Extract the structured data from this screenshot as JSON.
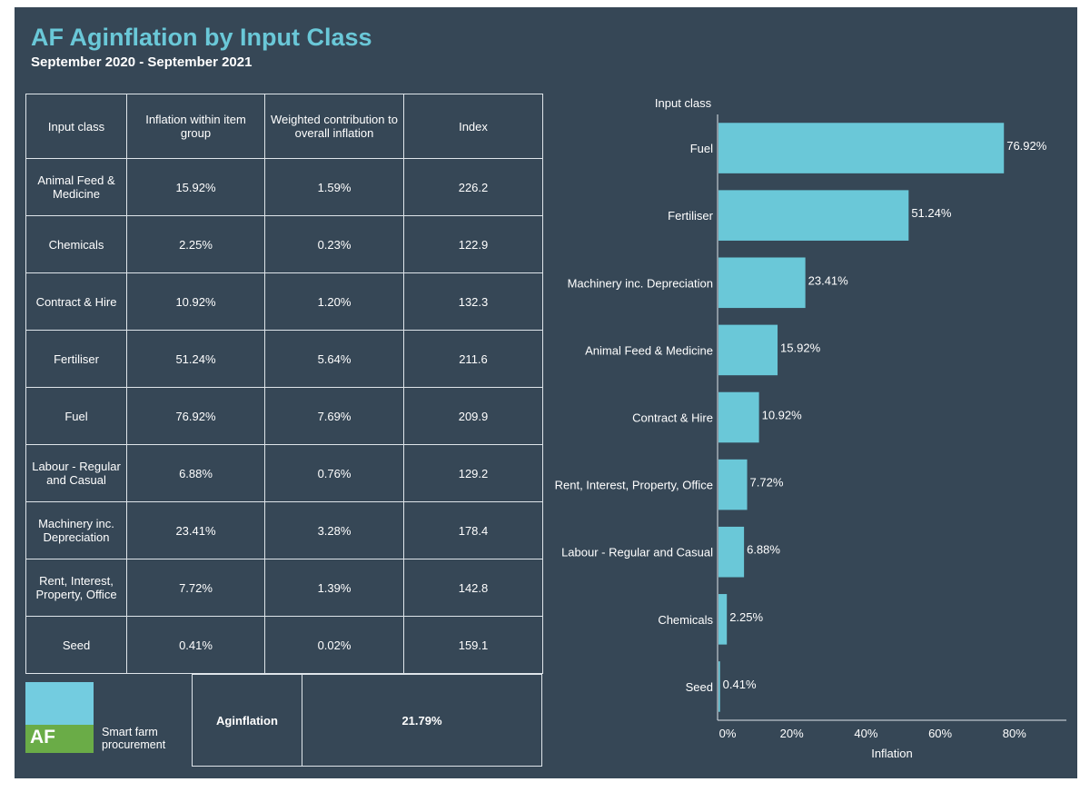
{
  "header": {
    "title": "AF Aginflation by Input Class",
    "subtitle": "September 2020 - September 2021"
  },
  "table": {
    "columns": [
      "Input class",
      "Inflation within item group",
      "Weighted contribution to overall inflation",
      "Index"
    ],
    "rows": [
      [
        "Animal Feed & Medicine",
        "15.92%",
        "1.59%",
        "226.2"
      ],
      [
        "Chemicals",
        "2.25%",
        "0.23%",
        "122.9"
      ],
      [
        "Contract & Hire",
        "10.92%",
        "1.20%",
        "132.3"
      ],
      [
        "Fertiliser",
        "51.24%",
        "5.64%",
        "211.6"
      ],
      [
        "Fuel",
        "76.92%",
        "7.69%",
        "209.9"
      ],
      [
        "Labour - Regular and Casual",
        "6.88%",
        "0.76%",
        "129.2"
      ],
      [
        "Machinery inc. Depreciation",
        "23.41%",
        "3.28%",
        "178.4"
      ],
      [
        "Rent, Interest, Property, Office",
        "7.72%",
        "1.39%",
        "142.8"
      ],
      [
        "Seed",
        "0.41%",
        "0.02%",
        "159.1"
      ]
    ]
  },
  "summary": {
    "label": "Aginflation",
    "value": "21.79%"
  },
  "logo": {
    "mark": "AF",
    "tagline_line1": "Smart farm",
    "tagline_line2": "procurement"
  },
  "colors": {
    "background": "#364756",
    "bar": "#6ac8d8",
    "title": "#6ac8d8",
    "logo_blue": "#73cce0",
    "logo_green": "#6aac47"
  },
  "chart_data": {
    "type": "bar",
    "orientation": "horizontal",
    "categories": [
      "Fuel",
      "Fertiliser",
      "Machinery inc. Depreciation",
      "Animal Feed & Medicine",
      "Contract & Hire",
      "Rent, Interest, Property, Office",
      "Labour - Regular and Casual",
      "Chemicals",
      "Seed"
    ],
    "values": [
      76.92,
      51.24,
      23.41,
      15.92,
      10.92,
      7.72,
      6.88,
      2.25,
      0.41
    ],
    "data_labels": [
      "76.92%",
      "51.24%",
      "23.41%",
      "15.92%",
      "10.92%",
      "7.72%",
      "6.88%",
      "2.25%",
      "0.41%"
    ],
    "xlabel": "Inflation",
    "ylabel": "Input class",
    "xlim": [
      0,
      94
    ],
    "xticks": [
      0,
      20,
      40,
      60,
      80
    ],
    "xtick_labels": [
      "0%",
      "20%",
      "40%",
      "60%",
      "80%"
    ],
    "grid": false
  }
}
